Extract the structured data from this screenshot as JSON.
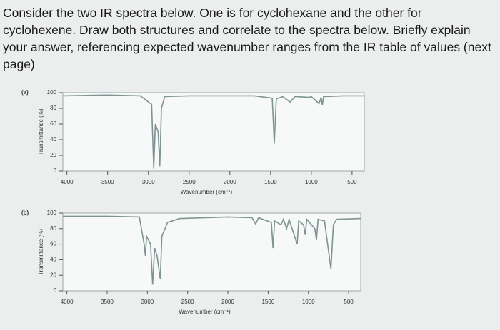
{
  "question": "Consider the two IR spectra below. One is for cyclohexane and the other for cyclohexene. Draw both structures and correlate to the spectra below. Briefly explain your answer, referencing expected wavenumber ranges from the IR table of values (next page)",
  "chart_data": [
    {
      "type": "line",
      "panel": "(a)",
      "xlabel": "Wavenumber (cm⁻¹)",
      "ylabel": "Transmittance (%)",
      "color": "#7f9393",
      "x": [
        4050,
        3500,
        3100,
        2960,
        2935,
        2915,
        2880,
        2860,
        2840,
        2800,
        2500,
        2000,
        1700,
        1480,
        1455,
        1430,
        1350,
        1260,
        1200,
        1030,
        1000,
        905,
        880,
        865,
        850,
        600,
        350
      ],
      "values": [
        96,
        97,
        96,
        85,
        3,
        60,
        50,
        6,
        80,
        95,
        96,
        96,
        96,
        93,
        35,
        92,
        95,
        88,
        95,
        94,
        95,
        86,
        94,
        84,
        95,
        96,
        96
      ],
      "xlim": [
        4050,
        350
      ],
      "xticks": [
        4000,
        3500,
        3000,
        2500,
        2000,
        1500,
        1000,
        500
      ],
      "ylim": [
        0,
        100
      ],
      "yticks": [
        0,
        20,
        40,
        60,
        80,
        100
      ]
    },
    {
      "type": "line",
      "panel": "(b)",
      "xlabel": "Wavenumber (cm⁻¹)",
      "ylabel": "Transmittance (%)",
      "color": "#7f9393",
      "x": [
        4050,
        3500,
        3100,
        3040,
        3025,
        3010,
        2960,
        2935,
        2910,
        2880,
        2860,
        2840,
        2820,
        2750,
        2600,
        2000,
        1700,
        1655,
        1620,
        1460,
        1440,
        1420,
        1340,
        1310,
        1270,
        1240,
        1140,
        1120,
        1060,
        1040,
        1020,
        920,
        900,
        880,
        800,
        720,
        690,
        650,
        350
      ],
      "values": [
        96,
        96,
        95,
        60,
        45,
        70,
        60,
        8,
        55,
        45,
        30,
        15,
        70,
        88,
        93,
        95,
        94,
        86,
        94,
        88,
        55,
        90,
        85,
        92,
        80,
        92,
        60,
        90,
        85,
        72,
        92,
        80,
        65,
        92,
        90,
        28,
        85,
        92,
        93
      ],
      "xlim": [
        4050,
        350
      ],
      "xticks": [
        4000,
        3500,
        3000,
        2500,
        2000,
        1500,
        1000,
        500
      ],
      "ylim": [
        0,
        100
      ],
      "yticks": [
        0,
        20,
        40,
        60,
        80,
        100
      ]
    }
  ]
}
